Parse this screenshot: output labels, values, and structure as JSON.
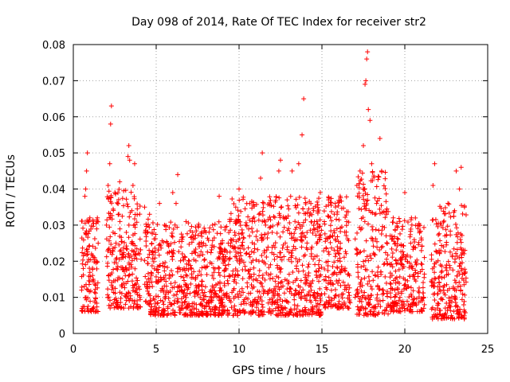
{
  "chart_data": {
    "type": "scatter",
    "title": "Day 098 of 2014, Rate Of TEC Index for receiver str2",
    "xlabel": "GPS time / hours",
    "ylabel": "ROTI / TECUs",
    "xlim": [
      0,
      25
    ],
    "ylim": [
      0,
      0.08
    ],
    "x_ticks": [
      0,
      5,
      10,
      15,
      20,
      25
    ],
    "x_tick_labels": [
      "0",
      "5",
      "10",
      "15",
      "20",
      "25"
    ],
    "y_ticks": [
      0,
      0.01,
      0.02,
      0.03,
      0.04,
      0.05,
      0.06,
      0.07,
      0.08
    ],
    "y_tick_labels": [
      "0",
      "0.01",
      "0.02",
      "0.03",
      "0.04",
      "0.05",
      "0.06",
      "0.07",
      "0.08"
    ],
    "grid": true,
    "marker": "+",
    "series_color": "#ff0000",
    "series": [
      {
        "name": "ROTI",
        "points": [
          [
            0.5,
            0.012
          ],
          [
            0.6,
            0.018
          ],
          [
            0.7,
            0.038
          ],
          [
            0.75,
            0.04
          ],
          [
            0.8,
            0.045
          ],
          [
            0.85,
            0.05
          ],
          [
            0.9,
            0.031
          ],
          [
            1.0,
            0.032
          ],
          [
            1.1,
            0.022
          ],
          [
            1.2,
            0.015
          ],
          [
            1.3,
            0.009
          ],
          [
            1.4,
            0.02
          ],
          [
            1.5,
            0.025
          ],
          [
            2.0,
            0.03
          ],
          [
            2.1,
            0.041
          ],
          [
            2.2,
            0.047
          ],
          [
            2.25,
            0.058
          ],
          [
            2.3,
            0.063
          ],
          [
            2.4,
            0.028
          ],
          [
            2.6,
            0.018
          ],
          [
            2.8,
            0.042
          ],
          [
            3.0,
            0.021
          ],
          [
            3.2,
            0.028
          ],
          [
            3.3,
            0.049
          ],
          [
            3.35,
            0.052
          ],
          [
            3.4,
            0.048
          ],
          [
            3.5,
            0.025
          ],
          [
            3.6,
            0.041
          ],
          [
            3.7,
            0.047
          ],
          [
            4.0,
            0.022
          ],
          [
            4.3,
            0.035
          ],
          [
            4.6,
            0.033
          ],
          [
            5.2,
            0.036
          ],
          [
            5.5,
            0.03
          ],
          [
            6.0,
            0.039
          ],
          [
            6.2,
            0.036
          ],
          [
            6.3,
            0.044
          ],
          [
            6.8,
            0.031
          ],
          [
            7.2,
            0.028
          ],
          [
            7.6,
            0.025
          ],
          [
            8.0,
            0.028
          ],
          [
            8.4,
            0.03
          ],
          [
            8.8,
            0.038
          ],
          [
            9.1,
            0.02
          ],
          [
            9.6,
            0.024
          ],
          [
            9.8,
            0.035
          ],
          [
            10.0,
            0.04
          ],
          [
            10.4,
            0.03
          ],
          [
            10.8,
            0.031
          ],
          [
            11.2,
            0.033
          ],
          [
            11.3,
            0.043
          ],
          [
            11.4,
            0.05
          ],
          [
            11.6,
            0.03
          ],
          [
            12.0,
            0.028
          ],
          [
            12.4,
            0.045
          ],
          [
            12.5,
            0.048
          ],
          [
            12.9,
            0.037
          ],
          [
            13.2,
            0.045
          ],
          [
            13.6,
            0.047
          ],
          [
            13.8,
            0.055
          ],
          [
            13.9,
            0.065
          ],
          [
            14.1,
            0.028
          ],
          [
            14.5,
            0.034
          ],
          [
            14.9,
            0.039
          ],
          [
            15.4,
            0.037
          ],
          [
            15.8,
            0.036
          ],
          [
            16.1,
            0.038
          ],
          [
            16.5,
            0.031
          ],
          [
            17.3,
            0.045
          ],
          [
            17.5,
            0.052
          ],
          [
            17.6,
            0.069
          ],
          [
            17.65,
            0.07
          ],
          [
            17.7,
            0.076
          ],
          [
            17.75,
            0.078
          ],
          [
            17.8,
            0.062
          ],
          [
            17.9,
            0.059
          ],
          [
            18.0,
            0.047
          ],
          [
            18.3,
            0.036
          ],
          [
            18.5,
            0.054
          ],
          [
            18.6,
            0.045
          ],
          [
            18.9,
            0.033
          ],
          [
            19.3,
            0.032
          ],
          [
            19.7,
            0.031
          ],
          [
            20.0,
            0.039
          ],
          [
            20.4,
            0.032
          ],
          [
            20.8,
            0.029
          ],
          [
            21.7,
            0.041
          ],
          [
            21.8,
            0.047
          ],
          [
            22.2,
            0.03
          ],
          [
            22.6,
            0.036
          ],
          [
            23.0,
            0.034
          ],
          [
            23.1,
            0.045
          ],
          [
            23.3,
            0.04
          ],
          [
            23.4,
            0.046
          ],
          [
            23.6,
            0.035
          ]
        ]
      }
    ],
    "clusters": [
      {
        "x": [
          0.5,
          1.5
        ],
        "y": [
          0.006,
          0.032
        ]
      },
      {
        "x": [
          2.0,
          4.1
        ],
        "y": [
          0.007,
          0.04
        ]
      },
      {
        "x": [
          4.3,
          4.6
        ],
        "y": [
          0.008,
          0.032
        ]
      },
      {
        "x": [
          4.6,
          9.3
        ],
        "y": [
          0.005,
          0.031
        ]
      },
      {
        "x": [
          9.3,
          15.0
        ],
        "y": [
          0.005,
          0.038
        ]
      },
      {
        "x": [
          15.1,
          16.7
        ],
        "y": [
          0.007,
          0.038
        ]
      },
      {
        "x": [
          17.0,
          19.0
        ],
        "y": [
          0.005,
          0.045
        ]
      },
      {
        "x": [
          19.1,
          21.2
        ],
        "y": [
          0.006,
          0.032
        ]
      },
      {
        "x": [
          21.6,
          23.7
        ],
        "y": [
          0.004,
          0.036
        ]
      }
    ]
  }
}
